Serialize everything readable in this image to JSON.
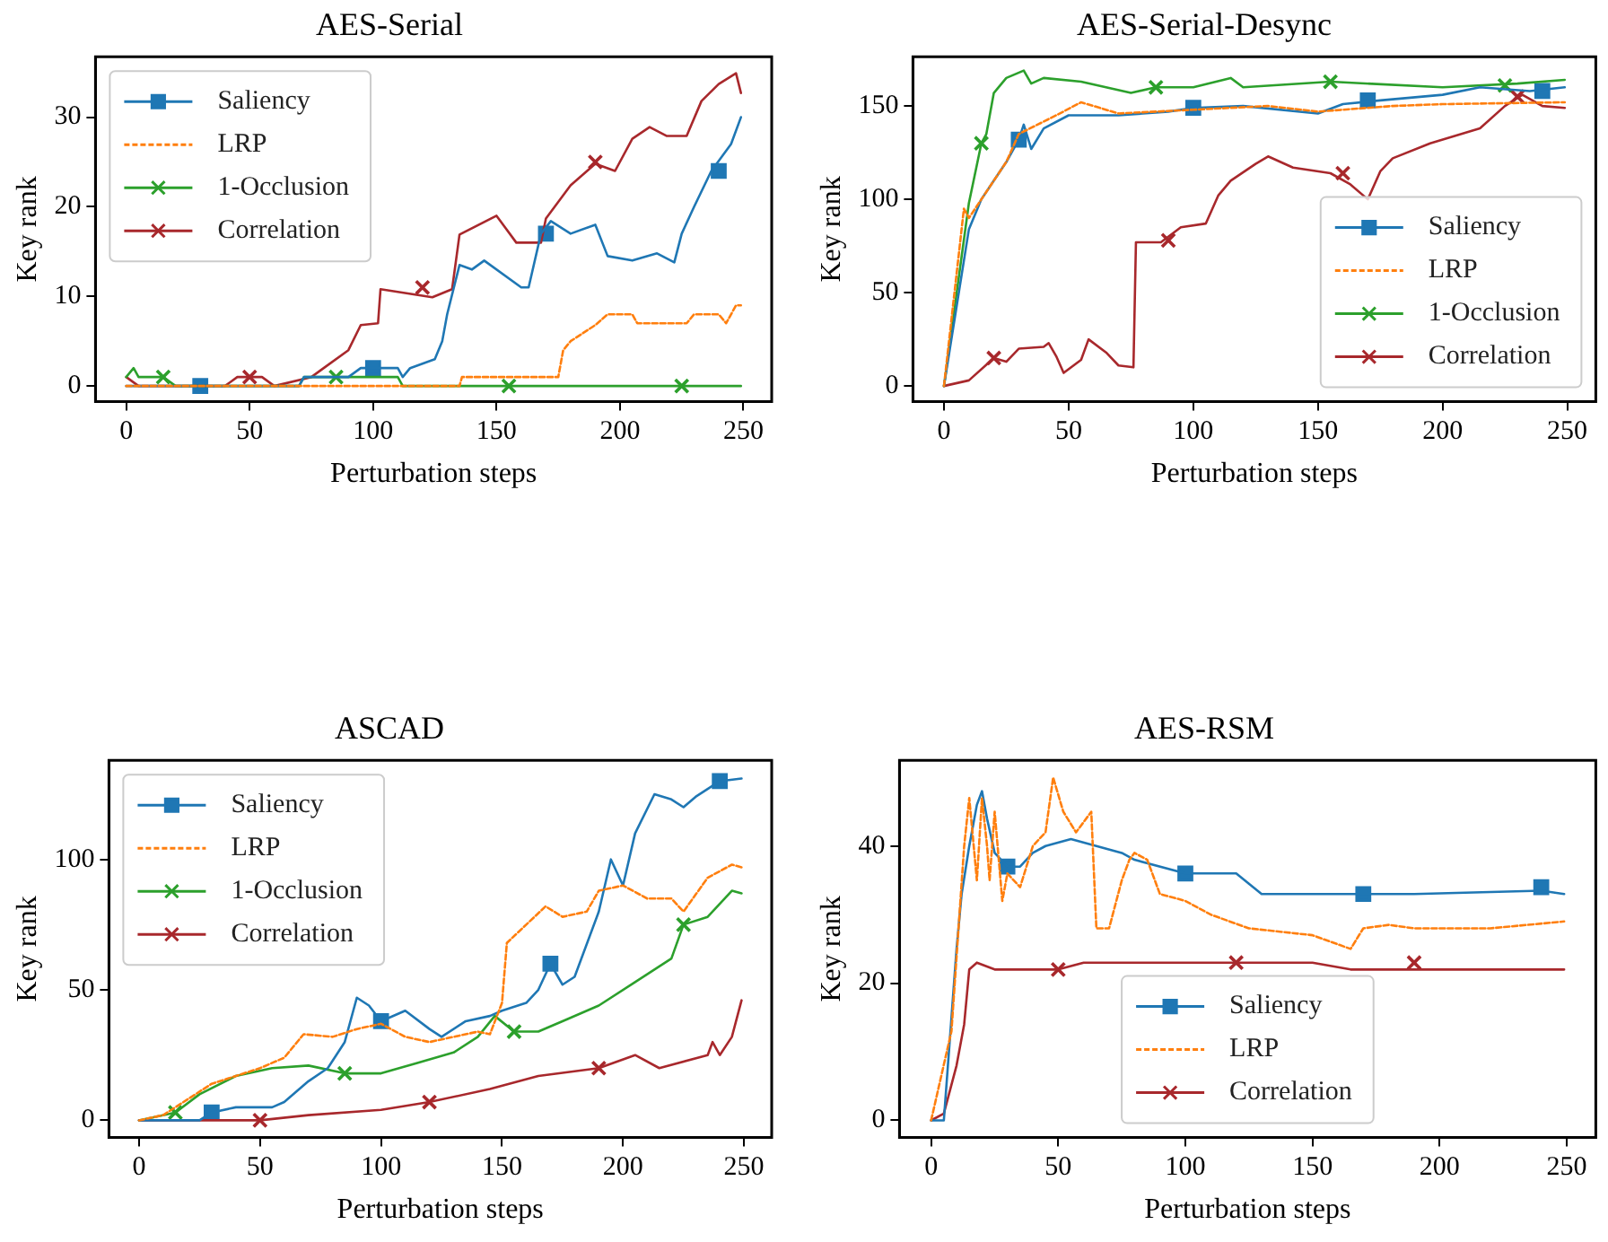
{
  "chart_data": [
    {
      "type": "line",
      "title": "AES-Serial",
      "xlabel": "Perturbation steps",
      "ylabel": "Key rank",
      "xlim": [
        -12.45,
        261.45
      ],
      "xticks": [
        0,
        50,
        100,
        150,
        200,
        250
      ],
      "ylim": [
        -1.75,
        36.75
      ],
      "yticks": [
        0,
        10,
        20,
        30
      ],
      "grid": false,
      "legend": "top left",
      "series": [
        {
          "name": "Saliency",
          "color": "#1f77b4",
          "x": [
            0,
            70,
            72,
            90,
            95,
            110,
            112,
            115,
            125,
            128,
            130,
            135,
            140,
            145,
            160,
            163,
            168,
            172,
            180,
            190,
            195,
            205,
            215,
            222,
            225,
            230,
            237,
            245,
            249
          ],
          "values": [
            0,
            0,
            1,
            1,
            2,
            2,
            1,
            2,
            3,
            5,
            8,
            13.5,
            13,
            14,
            11,
            11,
            17,
            18.4,
            17,
            18,
            14.5,
            14,
            14.8,
            13.8,
            17,
            20,
            24,
            27,
            30
          ]
        },
        {
          "name": "LRP",
          "color": "#ff7f0e",
          "line_style": "dashed",
          "x": [
            0,
            135,
            136,
            175,
            177,
            180,
            190,
            195,
            205,
            207,
            227,
            230,
            240,
            243,
            247,
            249
          ],
          "values": [
            0,
            0,
            1,
            1,
            4,
            5,
            6.8,
            8,
            8,
            7,
            7,
            8,
            8,
            7,
            9,
            9
          ]
        },
        {
          "name": "1-Occlusion",
          "color": "#2ca02c",
          "x": [
            0,
            3,
            5,
            15,
            20,
            70,
            72,
            110,
            112,
            249
          ],
          "values": [
            1,
            2,
            1,
            1,
            0,
            0,
            1,
            1,
            0,
            0
          ]
        },
        {
          "name": "Correlation",
          "color": "#a8282c",
          "x": [
            0,
            5,
            40,
            45,
            55,
            60,
            75,
            80,
            90,
            95,
            102,
            103,
            124,
            132,
            135,
            150,
            158,
            168,
            170,
            180,
            190,
            198,
            205,
            212,
            219,
            227,
            233,
            240,
            247,
            249
          ],
          "values": [
            1,
            0,
            0,
            1,
            1,
            0,
            1,
            2,
            4,
            6.8,
            7,
            10.8,
            9.9,
            10.8,
            16.9,
            19,
            16,
            16,
            18.7,
            22.4,
            24.8,
            24,
            27.6,
            28.9,
            27.9,
            27.9,
            31.8,
            33.7,
            34.9,
            32.7
          ]
        },
        {
          "type": "scatter",
          "color": "#1f77b4",
          "marker": "square",
          "x": [
            30,
            100,
            170,
            240
          ],
          "values": [
            0,
            2,
            17,
            24
          ]
        },
        {
          "type": "scatter",
          "color": "#2ca02c",
          "marker": "cross",
          "x": [
            15,
            85,
            155,
            225
          ],
          "values": [
            1,
            1,
            0,
            0
          ]
        },
        {
          "type": "scatter",
          "color": "#a8282c",
          "marker": "cross",
          "x": [
            50,
            120,
            190
          ],
          "values": [
            1,
            11,
            25
          ]
        }
      ]
    },
    {
      "type": "line",
      "title": "AES-Serial-Desync",
      "xlabel": "Perturbation steps",
      "ylabel": "Key rank",
      "xlim": [
        -12.45,
        261.45
      ],
      "xticks": [
        0,
        50,
        100,
        150,
        200,
        250
      ],
      "ylim": [
        -8.4,
        176.4
      ],
      "yticks": [
        0,
        50,
        100,
        150
      ],
      "grid": false,
      "legend": "bottom right",
      "series": [
        {
          "name": "Saliency",
          "color": "#1f77b4",
          "x": [
            0,
            10,
            15,
            20,
            25,
            30,
            32,
            35,
            40,
            50,
            70,
            90,
            100,
            120,
            150,
            160,
            175,
            200,
            215,
            235,
            249
          ],
          "values": [
            0,
            84,
            100,
            110,
            120,
            132,
            140,
            127,
            138,
            145,
            145,
            147,
            149,
            150,
            146,
            151,
            153,
            156,
            160,
            158,
            160
          ]
        },
        {
          "name": "LRP",
          "color": "#ff7f0e",
          "line_style": "dashed",
          "x": [
            0,
            8,
            10,
            15,
            20,
            25,
            30,
            45,
            55,
            70,
            100,
            130,
            150,
            180,
            200,
            249
          ],
          "values": [
            0,
            95,
            90,
            100,
            110,
            120,
            135,
            145,
            152,
            146,
            148,
            150,
            147,
            150,
            151,
            152
          ]
        },
        {
          "name": "1-Occlusion",
          "color": "#2ca02c",
          "x": [
            0,
            10,
            15,
            17,
            20,
            25,
            32,
            35,
            40,
            55,
            75,
            85,
            100,
            115,
            120,
            155,
            200,
            230,
            249
          ],
          "values": [
            0,
            98,
            130,
            135,
            157,
            165,
            169,
            162,
            165,
            163,
            157,
            160,
            160,
            165,
            160,
            163,
            160,
            162,
            164
          ]
        },
        {
          "name": "Correlation",
          "color": "#a8282c",
          "x": [
            0,
            10,
            20,
            25,
            30,
            40,
            42,
            45,
            48,
            55,
            58,
            65,
            70,
            76,
            77,
            87,
            95,
            105,
            110,
            115,
            125,
            130,
            140,
            155,
            163,
            170,
            175,
            180,
            195,
            215,
            225,
            232,
            240,
            249
          ],
          "values": [
            0,
            3,
            15,
            13,
            20,
            21,
            23,
            16,
            7,
            14,
            25,
            18,
            11,
            10,
            77,
            77,
            85,
            87,
            102,
            110,
            119,
            123,
            117,
            114,
            108,
            100,
            115,
            122,
            130,
            138,
            150,
            156,
            150,
            149
          ]
        },
        {
          "type": "scatter",
          "color": "#1f77b4",
          "marker": "square",
          "x": [
            30,
            100,
            170,
            240
          ],
          "values": [
            132,
            149,
            153,
            158
          ]
        },
        {
          "type": "scatter",
          "color": "#2ca02c",
          "marker": "cross",
          "x": [
            15,
            85,
            155,
            225
          ],
          "values": [
            130,
            160,
            163,
            161
          ]
        },
        {
          "type": "scatter",
          "color": "#a8282c",
          "marker": "cross",
          "x": [
            20,
            90,
            160,
            230
          ],
          "values": [
            15,
            78,
            114,
            155
          ]
        }
      ]
    },
    {
      "type": "line",
      "title": "ASCAD",
      "xlabel": "Perturbation steps",
      "ylabel": "Key rank",
      "xlim": [
        -12.45,
        261.45
      ],
      "xticks": [
        0,
        50,
        100,
        150,
        200,
        250
      ],
      "ylim": [
        -6.6,
        138
      ],
      "yticks": [
        0,
        50,
        100
      ],
      "grid": false,
      "legend": "top left",
      "series": [
        {
          "name": "Saliency",
          "color": "#1f77b4",
          "x": [
            0,
            25,
            30,
            40,
            55,
            60,
            70,
            78,
            85,
            90,
            95,
            100,
            110,
            120,
            125,
            135,
            145,
            150,
            160,
            165,
            170,
            175,
            180,
            190,
            195,
            200,
            205,
            213,
            220,
            225,
            230,
            240,
            249
          ],
          "values": [
            0,
            0,
            3,
            5,
            5,
            7,
            15,
            20,
            30,
            47,
            44,
            38,
            42,
            35,
            32,
            38,
            40,
            42,
            45,
            50,
            60,
            52,
            55,
            80,
            100,
            90,
            110,
            125,
            123,
            120,
            124,
            130,
            131
          ]
        },
        {
          "name": "LRP",
          "color": "#ff7f0e",
          "line_style": "dashed",
          "x": [
            0,
            10,
            20,
            30,
            40,
            50,
            60,
            68,
            80,
            90,
            100,
            110,
            120,
            130,
            140,
            145,
            150,
            152,
            160,
            168,
            175,
            185,
            190,
            200,
            210,
            220,
            225,
            235,
            245,
            249
          ],
          "values": [
            0,
            2,
            8,
            14,
            17,
            20,
            24,
            33,
            32,
            35,
            37,
            32,
            30,
            32,
            34,
            33,
            45,
            68,
            75,
            82,
            78,
            80,
            88,
            90,
            85,
            85,
            80,
            93,
            98,
            97
          ]
        },
        {
          "name": "1-Occlusion",
          "color": "#2ca02c",
          "x": [
            0,
            15,
            25,
            40,
            55,
            70,
            85,
            100,
            115,
            130,
            140,
            147,
            155,
            165,
            175,
            190,
            205,
            220,
            225,
            235,
            245,
            249
          ],
          "values": [
            0,
            3,
            10,
            17,
            20,
            21,
            18,
            18,
            22,
            26,
            32,
            40,
            34,
            34,
            38,
            44,
            53,
            62,
            75,
            78,
            88,
            87
          ]
        },
        {
          "name": "Correlation",
          "color": "#a8282c",
          "x": [
            0,
            50,
            70,
            100,
            120,
            145,
            165,
            190,
            205,
            215,
            235,
            237,
            240,
            245,
            249
          ],
          "values": [
            0,
            0,
            2,
            4,
            7,
            12,
            17,
            20,
            25,
            20,
            25,
            30,
            25,
            32,
            46
          ]
        },
        {
          "type": "scatter",
          "color": "#1f77b4",
          "marker": "square",
          "x": [
            30,
            100,
            170,
            240
          ],
          "values": [
            3,
            38,
            60,
            130
          ]
        },
        {
          "type": "scatter",
          "color": "#2ca02c",
          "marker": "cross",
          "x": [
            15,
            85,
            155,
            225
          ],
          "values": [
            3,
            18,
            34,
            75
          ]
        },
        {
          "type": "scatter",
          "color": "#a8282c",
          "marker": "cross",
          "x": [
            50,
            120,
            190
          ],
          "values": [
            0,
            7,
            20
          ]
        }
      ]
    },
    {
      "type": "line",
      "title": "AES-RSM",
      "xlabel": "Perturbation steps",
      "ylabel": "Key rank",
      "xlim": [
        -12.45,
        261.45
      ],
      "xticks": [
        0,
        50,
        100,
        150,
        200,
        250
      ],
      "ylim": [
        -2.5,
        52.5
      ],
      "yticks": [
        0,
        20,
        40
      ],
      "grid": false,
      "legend": "bottom",
      "series": [
        {
          "name": "Saliency",
          "color": "#1f77b4",
          "x": [
            0,
            5,
            8,
            10,
            12,
            15,
            18,
            20,
            22,
            25,
            30,
            35,
            40,
            45,
            55,
            65,
            75,
            80,
            100,
            120,
            125,
            130,
            170,
            190,
            240,
            249
          ],
          "values": [
            0,
            0,
            15,
            25,
            33,
            40,
            46,
            48,
            44,
            39,
            37,
            37,
            39,
            40,
            41,
            40,
            39,
            38,
            36,
            36,
            34.5,
            33,
            33,
            33,
            33.5,
            33
          ]
        },
        {
          "name": "LRP",
          "color": "#ff7f0e",
          "line_style": "dashed",
          "x": [
            0,
            8,
            13,
            15,
            18,
            20,
            22,
            23,
            25,
            28,
            30,
            35,
            40,
            45,
            48,
            52,
            57,
            63,
            65,
            70,
            75,
            78,
            80,
            85,
            90,
            100,
            110,
            125,
            150,
            165,
            170,
            180,
            190,
            220,
            249
          ],
          "values": [
            0,
            13,
            40,
            47,
            35,
            47,
            40,
            35,
            45,
            32,
            36,
            34,
            40,
            42,
            50,
            45,
            42,
            45,
            28,
            28,
            35,
            38,
            39,
            38,
            33,
            32,
            30,
            28,
            27,
            25,
            28,
            28.5,
            28,
            28,
            29
          ]
        },
        {
          "name": "Correlation",
          "color": "#a8282c",
          "x": [
            0,
            5,
            10,
            13,
            15,
            18,
            25,
            50,
            60,
            90,
            120,
            150,
            165,
            190,
            249
          ],
          "values": [
            0,
            1,
            8,
            14,
            22,
            23,
            22,
            22,
            23,
            23,
            23,
            23,
            22,
            22,
            22
          ]
        },
        {
          "type": "scatter",
          "color": "#1f77b4",
          "marker": "square",
          "x": [
            30,
            100,
            170,
            240
          ],
          "values": [
            37,
            36,
            33,
            34
          ]
        },
        {
          "type": "scatter",
          "color": "#a8282c",
          "marker": "cross",
          "x": [
            50,
            120,
            190
          ],
          "values": [
            22,
            23,
            23
          ]
        }
      ]
    }
  ]
}
